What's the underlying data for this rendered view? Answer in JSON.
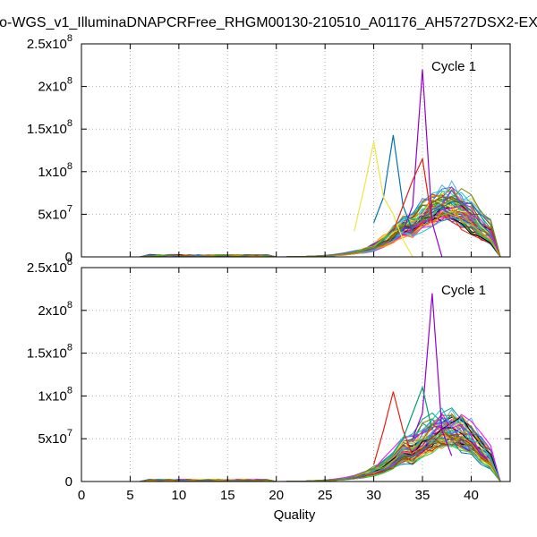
{
  "title": "o-WGS_v1_IlluminaDNAPCRFree_RHGM00130-210510_A01176_AH5727DSX2-EX",
  "xlabel": "Quality",
  "chart_data": [
    {
      "type": "line",
      "panel": "top",
      "annotation": "Cycle 1",
      "xlim": [
        0,
        44
      ],
      "ylim": [
        0,
        250000000
      ],
      "x_ticks": [
        0,
        5,
        10,
        15,
        20,
        25,
        30,
        35,
        40
      ],
      "y_ticks": [
        {
          "value": 0,
          "mantissa": "0",
          "exponent": ""
        },
        {
          "value": 50000000,
          "mantissa": "5x10",
          "exponent": "7"
        },
        {
          "value": 100000000,
          "mantissa": "1x10",
          "exponent": "8"
        },
        {
          "value": 150000000,
          "mantissa": "1.5x10",
          "exponent": "8"
        },
        {
          "value": 200000000,
          "mantissa": "2x10",
          "exponent": "8"
        },
        {
          "value": 250000000,
          "mantissa": "2.5x10",
          "exponent": "8"
        }
      ],
      "grid": true,
      "n_series": 60,
      "spike_series": [
        {
          "color": "#9400d3",
          "x": [
            33,
            34,
            35,
            36,
            37
          ],
          "values": [
            30000000,
            60000000,
            220000000,
            40000000,
            0
          ]
        },
        {
          "color": "#0072b2",
          "x": [
            30,
            31,
            32,
            33,
            34
          ],
          "values": [
            40000000,
            70000000,
            143000000,
            60000000,
            30000000
          ]
        },
        {
          "color": "#f0e442",
          "x": [
            28,
            29,
            30,
            31,
            32,
            33,
            34
          ],
          "values": [
            30000000,
            80000000,
            135000000,
            70000000,
            50000000,
            20000000,
            0
          ]
        },
        {
          "color": "#e51e10",
          "x": [
            32,
            33,
            34,
            35,
            36
          ],
          "values": [
            30000000,
            60000000,
            90000000,
            115000000,
            40000000
          ]
        }
      ]
    },
    {
      "type": "line",
      "panel": "bottom",
      "annotation": "Cycle 1",
      "xlim": [
        0,
        44
      ],
      "ylim": [
        0,
        250000000
      ],
      "x_ticks": [
        0,
        5,
        10,
        15,
        20,
        25,
        30,
        35,
        40
      ],
      "y_ticks": [
        {
          "value": 0,
          "mantissa": "0",
          "exponent": ""
        },
        {
          "value": 50000000,
          "mantissa": "5x10",
          "exponent": "7"
        },
        {
          "value": 100000000,
          "mantissa": "1x10",
          "exponent": "8"
        },
        {
          "value": 150000000,
          "mantissa": "1.5x10",
          "exponent": "8"
        },
        {
          "value": 200000000,
          "mantissa": "2x10",
          "exponent": "8"
        },
        {
          "value": 250000000,
          "mantissa": "2.5x10",
          "exponent": "8"
        }
      ],
      "grid": true,
      "n_series": 60,
      "spike_series": [
        {
          "color": "#9400d3",
          "x": [
            34,
            35,
            36,
            37,
            38
          ],
          "values": [
            50000000,
            80000000,
            220000000,
            60000000,
            30000000
          ]
        },
        {
          "color": "#e51e10",
          "x": [
            30,
            31,
            32,
            33,
            34
          ],
          "values": [
            20000000,
            60000000,
            105000000,
            60000000,
            30000000
          ]
        },
        {
          "color": "#009e73",
          "x": [
            33,
            34,
            35,
            36
          ],
          "values": [
            50000000,
            80000000,
            110000000,
            60000000
          ]
        }
      ]
    }
  ],
  "palette": [
    "#9400d3",
    "#009e73",
    "#56b4e9",
    "#e69f00",
    "#f0e442",
    "#0072b2",
    "#e51e10",
    "#000000",
    "#ff00ff",
    "#00ced1",
    "#8b4513",
    "#32cd32",
    "#ff8c00",
    "#4169e1",
    "#808000"
  ]
}
